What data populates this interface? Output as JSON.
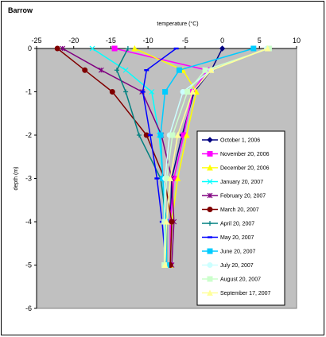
{
  "chart_data": {
    "type": "line",
    "title": "Barrow",
    "xlabel": "temperature (°C)",
    "ylabel": "depth (m)",
    "xlim": [
      -25,
      10
    ],
    "ylim": [
      -6,
      0
    ],
    "xticks": [
      -25,
      -20,
      -15,
      -10,
      -5,
      0,
      5,
      10
    ],
    "yticks": [
      0,
      -1,
      -2,
      -3,
      -4,
      -5,
      -6
    ],
    "x_axis_position": "top",
    "legend_position": "right",
    "plot_background": "#c0c0c0",
    "series": [
      {
        "name": "October 1, 2006",
        "color": "#000080",
        "marker": "diamond",
        "points": [
          [
            0,
            0
          ],
          [
            -1.5,
            -0.5
          ],
          [
            -3.8,
            -1
          ],
          [
            -5.4,
            -2
          ],
          [
            -6.8,
            -3
          ],
          [
            -7.0,
            -4
          ],
          [
            -7.0,
            -5
          ]
        ]
      },
      {
        "name": "November 20, 2006",
        "color": "#ff00ff",
        "marker": "square",
        "points": [
          [
            -14.5,
            0
          ],
          [
            -2,
            -0.5
          ],
          [
            -4,
            -1
          ],
          [
            -5.2,
            -2
          ],
          [
            -6.5,
            -3
          ],
          [
            -7.0,
            -4
          ],
          [
            -7.0,
            -5
          ]
        ]
      },
      {
        "name": "December 20, 2006",
        "color": "#ffff00",
        "marker": "triangle",
        "points": [
          [
            -11.8,
            0
          ],
          [
            -5.3,
            -0.5
          ],
          [
            -3.5,
            -1
          ],
          [
            -4.8,
            -2
          ],
          [
            -6.0,
            -3
          ],
          [
            -6.8,
            -4
          ],
          [
            -7.0,
            -5
          ]
        ]
      },
      {
        "name": "January 20, 2007",
        "color": "#00ffff",
        "marker": "x",
        "points": [
          [
            -17.5,
            0
          ],
          [
            -13,
            -0.5
          ],
          [
            -9.5,
            -1
          ],
          [
            -8.5,
            -2
          ],
          [
            -8.0,
            -3
          ],
          [
            -7.8,
            -4
          ],
          [
            -7.5,
            -5
          ]
        ]
      },
      {
        "name": "February 20, 2007",
        "color": "#800080",
        "marker": "star",
        "points": [
          [
            -21.5,
            0
          ],
          [
            -16.3,
            -0.5
          ],
          [
            -10.8,
            -1
          ],
          [
            -8.2,
            -2
          ],
          [
            -6.8,
            -3
          ],
          [
            -6.5,
            -4
          ],
          [
            -6.8,
            -5
          ]
        ]
      },
      {
        "name": "March 20, 2007",
        "color": "#800000",
        "marker": "circle",
        "points": [
          [
            -22.2,
            0
          ],
          [
            -18.5,
            -0.5
          ],
          [
            -14.8,
            -1
          ],
          [
            -10.2,
            -2
          ],
          [
            -7.8,
            -3
          ],
          [
            -6.8,
            -4
          ],
          [
            -7.0,
            -5
          ]
        ]
      },
      {
        "name": "April 20, 2007",
        "color": "#008080",
        "marker": "plus",
        "points": [
          [
            -12.7,
            0
          ],
          [
            -14.2,
            -0.5
          ],
          [
            -13.0,
            -1
          ],
          [
            -11.2,
            -2
          ],
          [
            -8.3,
            -3
          ],
          [
            -7.5,
            -4
          ],
          [
            -7.5,
            -5
          ]
        ]
      },
      {
        "name": "May 20, 2007",
        "color": "#0000ff",
        "marker": "dash",
        "points": [
          [
            -6.2,
            0
          ],
          [
            -10.2,
            -0.5
          ],
          [
            -10.7,
            -1
          ],
          [
            -9.7,
            -2
          ],
          [
            -8.8,
            -3
          ],
          [
            -8.1,
            -4
          ],
          [
            -7.6,
            -5
          ]
        ]
      },
      {
        "name": "June 20, 2007",
        "color": "#00ccff",
        "marker": "square",
        "points": [
          [
            4.2,
            0
          ],
          [
            -5.8,
            -0.5
          ],
          [
            -7.7,
            -1
          ],
          [
            -8.3,
            -2
          ],
          [
            -8.0,
            -3
          ],
          [
            -7.6,
            -4
          ],
          [
            -7.5,
            -5
          ]
        ]
      },
      {
        "name": "July 20, 2007",
        "color": "#ccffff",
        "marker": "circle",
        "points": [
          [
            6.0,
            0
          ],
          [
            -1.5,
            -0.5
          ],
          [
            -5.3,
            -1
          ],
          [
            -7.1,
            -2
          ],
          [
            -7.7,
            -3
          ],
          [
            -7.8,
            -4
          ],
          [
            -7.8,
            -5
          ]
        ]
      },
      {
        "name": "August 20, 2007",
        "color": "#ccffcc",
        "marker": "square",
        "points": [
          [
            6.3,
            0
          ],
          [
            -2.3,
            -0.5
          ],
          [
            -4.7,
            -1
          ],
          [
            -6.7,
            -2
          ],
          [
            -7.5,
            -3
          ],
          [
            -7.8,
            -4
          ],
          [
            -7.8,
            -5
          ]
        ]
      },
      {
        "name": "September 17, 2007",
        "color": "#ffff99",
        "marker": "triangle",
        "points": [
          [
            6.1,
            0
          ],
          [
            -1.5,
            -0.5
          ],
          [
            -4.0,
            -1
          ],
          [
            -6.0,
            -2
          ],
          [
            -7.0,
            -3
          ],
          [
            -7.5,
            -4
          ],
          [
            -7.7,
            -5
          ]
        ]
      }
    ]
  }
}
